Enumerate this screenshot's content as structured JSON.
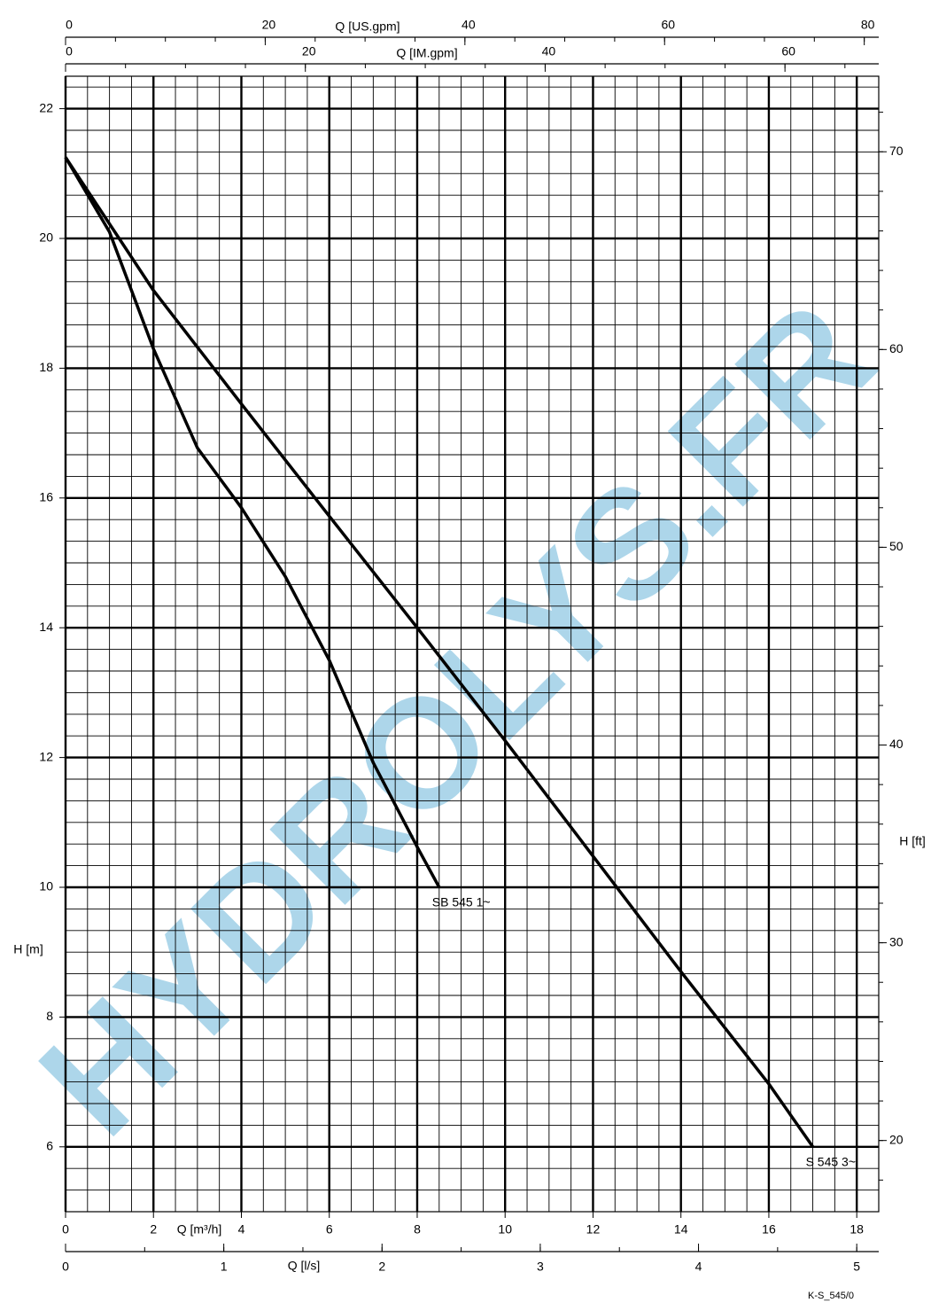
{
  "chart_data": {
    "type": "line",
    "x_label": "Q [m³/h]",
    "y_label": "H [m]",
    "xlim": [
      0,
      18.5
    ],
    "ylim": [
      5,
      22.5
    ],
    "xticks": [
      0,
      2,
      4,
      6,
      8,
      10,
      12,
      14,
      16,
      18
    ],
    "yticks": [
      6,
      8,
      10,
      12,
      14,
      16,
      18,
      20,
      22
    ],
    "grid": true,
    "minor_divisions": {
      "x": 4,
      "y": 6
    },
    "secondary_axes": [
      {
        "label": "Q [US.gpm]",
        "position": "top",
        "lim": [
          0,
          81.45
        ],
        "ticks": [
          0,
          20,
          40,
          60,
          80
        ],
        "minor_step": 5
      },
      {
        "label": "Q [IM.gpm]",
        "position": "top-inner",
        "lim": [
          0,
          67.82
        ],
        "ticks": [
          0,
          20,
          40,
          60
        ],
        "minor_step": 5
      },
      {
        "label": "Q [l/s]",
        "position": "bottom",
        "lim": [
          0,
          5.139
        ],
        "ticks": [
          0,
          1,
          2,
          3,
          4,
          5
        ],
        "minor_step": 0.5
      },
      {
        "label": "H [ft]",
        "position": "right",
        "lim": [
          16.4,
          73.82
        ],
        "ticks": [
          20,
          30,
          40,
          50,
          60,
          70
        ],
        "minor_step": 2
      }
    ],
    "series": [
      {
        "name": "S 545 3~",
        "color": "#000000",
        "x": [
          0,
          2,
          4,
          6,
          8,
          10,
          12,
          14,
          16,
          17
        ],
        "values": [
          21.25,
          19.2,
          17.45,
          15.72,
          14.0,
          12.26,
          10.48,
          8.7,
          6.97,
          6.0
        ]
      },
      {
        "name": "SB 545 1~",
        "color": "#000000",
        "x": [
          0,
          1,
          2,
          3,
          4,
          5,
          6,
          7,
          8,
          8.5
        ],
        "values": [
          21.25,
          20.1,
          18.3,
          16.77,
          15.85,
          14.79,
          13.5,
          11.92,
          10.62,
          10.0
        ]
      }
    ],
    "watermark": "HYDROLYS.FR",
    "footnote": "K-S_545/0"
  }
}
